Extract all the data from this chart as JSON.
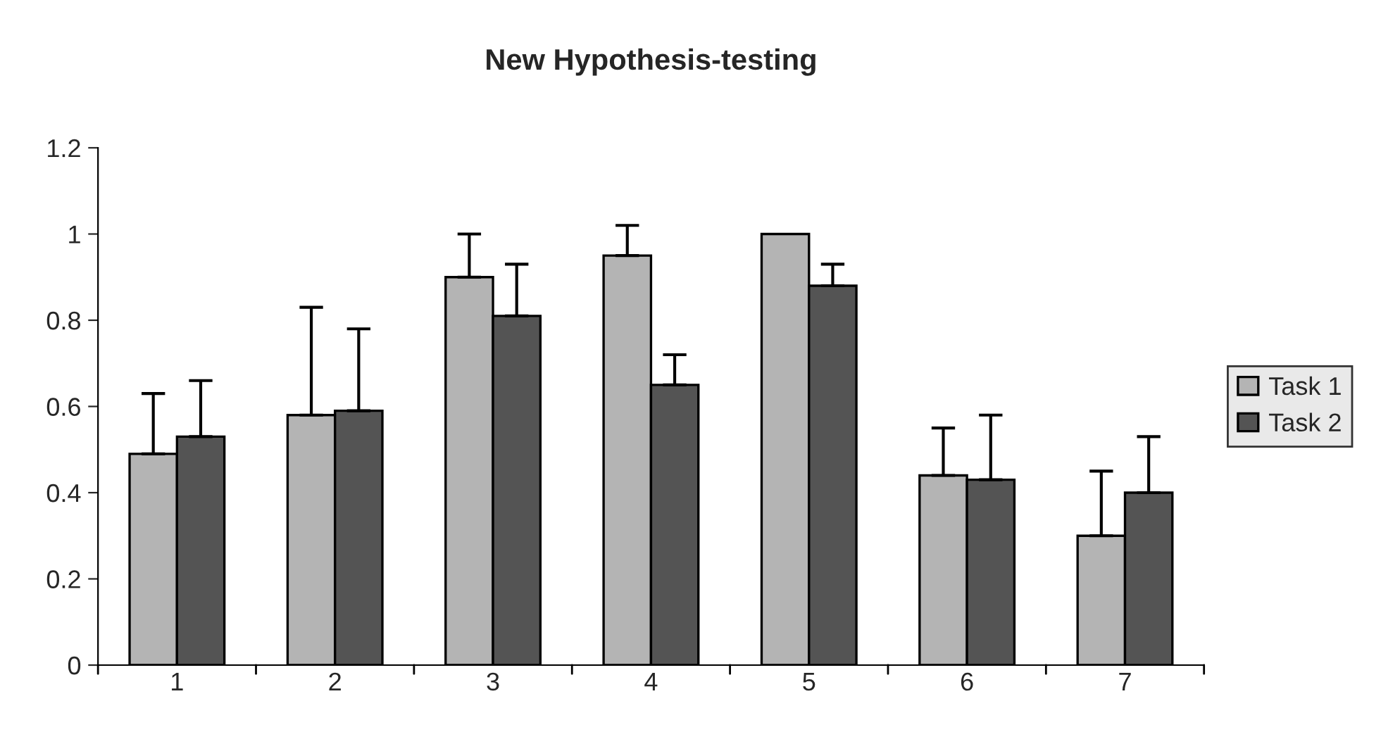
{
  "chart_data": {
    "type": "bar",
    "title": "New Hypothesis-testing",
    "categories": [
      "1",
      "2",
      "3",
      "4",
      "5",
      "6",
      "7"
    ],
    "series": [
      {
        "name": "Task 1",
        "color": "#b4b4b4",
        "values": [
          0.49,
          0.58,
          0.9,
          0.95,
          1.0,
          0.44,
          0.3
        ],
        "errors": [
          [
            0.49,
            0.63
          ],
          [
            0.58,
            0.83
          ],
          [
            0.9,
            1.0
          ],
          [
            0.95,
            1.02
          ],
          null,
          [
            0.44,
            0.55
          ],
          [
            0.3,
            0.45
          ]
        ]
      },
      {
        "name": "Task 2",
        "color": "#545454",
        "values": [
          0.53,
          0.59,
          0.81,
          0.65,
          0.88,
          0.43,
          0.4
        ],
        "errors": [
          [
            0.53,
            0.66
          ],
          [
            0.59,
            0.78
          ],
          [
            0.81,
            0.93
          ],
          [
            0.65,
            0.72
          ],
          [
            0.88,
            0.93
          ],
          [
            0.43,
            0.58
          ],
          [
            0.4,
            0.53
          ]
        ]
      }
    ],
    "ylim": [
      0,
      1.2
    ],
    "yticks": [
      0,
      0.2,
      0.4,
      0.6,
      0.8,
      1,
      1.2
    ],
    "grid": false,
    "legend": "right"
  }
}
